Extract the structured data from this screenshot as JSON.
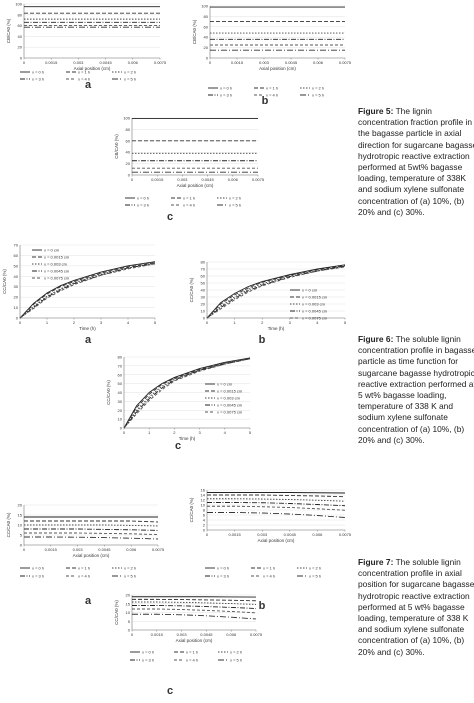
{
  "figures": [
    {
      "caption_label": "Figure 5:",
      "caption_text": "The lignin concentration fraction profile in the bagasse particle in axial direction for sugarcane bagasse hydrotropic reactive extraction performed at 5wt% bagasse loading, temperature of 338K and sodium xylene sulfonate concentration of (a) 10%, (b) 20% and (c) 30%.",
      "panels": [
        {
          "label": "a",
          "xlabel": "Axial position (cm)",
          "ylabel": "CB/CA0 (%)",
          "x": [
            0,
            0.0075
          ],
          "xlim": [
            0,
            0.0075
          ],
          "xticks": [
            0,
            0.0015,
            0.003,
            0.0045,
            0.006,
            0.0075
          ],
          "ylim": [
            0,
            100
          ],
          "yticks": [
            0,
            20,
            40,
            60,
            80,
            100
          ],
          "series": [
            {
              "name": "x = 0 h",
              "values": [
                95,
                95
              ]
            },
            {
              "name": "x = 1 h",
              "values": [
                83,
                83
              ]
            },
            {
              "name": "x = 2 h",
              "values": [
                72,
                72
              ]
            },
            {
              "name": "x = 3 h",
              "values": [
                66,
                66
              ]
            },
            {
              "name": "x = 4 h",
              "values": [
                60,
                60
              ]
            },
            {
              "name": "x = 5 h",
              "values": [
                57,
                57
              ]
            }
          ]
        },
        {
          "label": "b",
          "xlabel": "Axial position (cm)",
          "ylabel": "CB/CA0 (%)",
          "x": [
            0,
            0.0075
          ],
          "xlim": [
            0,
            0.0075
          ],
          "xticks": [
            0,
            0.0015,
            0.003,
            0.0045,
            0.006,
            0.0075
          ],
          "ylim": [
            0,
            100
          ],
          "yticks": [
            0,
            20,
            40,
            60,
            80,
            100
          ],
          "series": [
            {
              "name": "x = 0 h",
              "values": [
                98,
                98
              ]
            },
            {
              "name": "x = 1 h",
              "values": [
                70,
                70
              ]
            },
            {
              "name": "x = 2 h",
              "values": [
                48,
                48
              ]
            },
            {
              "name": "x = 3 h",
              "values": [
                36,
                36
              ]
            },
            {
              "name": "x = 4 h",
              "values": [
                25,
                25
              ]
            },
            {
              "name": "x = 5 h",
              "values": [
                15,
                15
              ]
            }
          ]
        },
        {
          "label": "c",
          "xlabel": "Axial position (cm)",
          "ylabel": "CB/CA0 (%)",
          "x": [
            0,
            0.0075
          ],
          "xlim": [
            0,
            0.0075
          ],
          "xticks": [
            0,
            0.0015,
            0.003,
            0.0045,
            0.006,
            0.0075
          ],
          "ylim": [
            0,
            100
          ],
          "yticks": [
            0,
            20,
            40,
            60,
            80,
            100
          ],
          "series": [
            {
              "name": "x = 0 h",
              "values": [
                99,
                99
              ]
            },
            {
              "name": "x = 1 h",
              "values": [
                60,
                60
              ]
            },
            {
              "name": "x = 2 h",
              "values": [
                38,
                38
              ]
            },
            {
              "name": "x = 3 h",
              "values": [
                25,
                25
              ]
            },
            {
              "name": "x = 4 h",
              "values": [
                12,
                12
              ]
            },
            {
              "name": "x = 5 h",
              "values": [
                5,
                5
              ]
            }
          ]
        }
      ]
    },
    {
      "caption_label": "Figure 6:",
      "caption_text": "The soluble lignin concentration profile in bagasse particle as time function for sugarcane bagasse hydrotropic reactive extraction performed at 5 wt% bagasse loading, temperature of 338 K and sodium xylene sulfonate concentration of (a) 10%, (b) 20% and (c) 30%.",
      "panels": [
        {
          "label": "a",
          "xlabel": "Time (h)",
          "ylabel": "CC/CA0 (%)",
          "x": [
            0,
            0.5,
            1,
            1.5,
            2,
            3,
            4,
            5
          ],
          "xlim": [
            0,
            5
          ],
          "xticks": [
            0,
            1,
            2,
            3,
            4,
            5
          ],
          "ylim": [
            0,
            70
          ],
          "yticks": [
            0,
            10,
            20,
            30,
            40,
            50,
            60,
            70
          ],
          "series": [
            {
              "name": "x = 0 cm",
              "values": [
                0,
                14,
                24,
                31,
                36,
                44,
                50,
                54
              ]
            },
            {
              "name": "x = 0.0015 cm",
              "values": [
                0,
                13,
                23,
                30,
                35,
                43,
                49,
                53
              ]
            },
            {
              "name": "x = 0.003 cm",
              "values": [
                0,
                11,
                21,
                28,
                34,
                42,
                48,
                53
              ]
            },
            {
              "name": "x = 0.0045 cm",
              "values": [
                0,
                10,
                20,
                27,
                33,
                41,
                48,
                52
              ]
            },
            {
              "name": "x = 0.0075 cm",
              "values": [
                0,
                9,
                19,
                26,
                32,
                41,
                47,
                52
              ]
            }
          ]
        },
        {
          "label": "b",
          "xlabel": "Time (h)",
          "ylabel": "CC/CA0 (%)",
          "x": [
            0,
            0.5,
            1,
            1.5,
            2,
            3,
            4,
            5
          ],
          "xlim": [
            0,
            5
          ],
          "xticks": [
            0,
            1,
            2,
            3,
            4,
            5
          ],
          "ylim": [
            0,
            80
          ],
          "yticks": [
            0,
            10,
            20,
            30,
            40,
            50,
            60,
            70,
            80
          ],
          "series": [
            {
              "name": "x = 0 cm",
              "values": [
                0,
                22,
                35,
                45,
                52,
                62,
                70,
                76
              ]
            },
            {
              "name": "x = 0.0015 cm",
              "values": [
                0,
                20,
                33,
                43,
                51,
                61,
                69,
                75
              ]
            },
            {
              "name": "x = 0.003 cm",
              "values": [
                0,
                17,
                30,
                41,
                49,
                60,
                68,
                74
              ]
            },
            {
              "name": "x = 0.0045 cm",
              "values": [
                0,
                15,
                28,
                39,
                47,
                59,
                67,
                74
              ]
            },
            {
              "name": "x = 0.0075 cm",
              "values": [
                0,
                13,
                26,
                37,
                46,
                58,
                67,
                73
              ]
            }
          ]
        },
        {
          "label": "c",
          "xlabel": "Time (h)",
          "ylabel": "CC/CA0 (%)",
          "x": [
            0,
            0.5,
            1,
            1.5,
            2,
            3,
            4,
            5
          ],
          "xlim": [
            0,
            5
          ],
          "xticks": [
            0,
            1,
            2,
            3,
            4,
            5
          ],
          "ylim": [
            0,
            80
          ],
          "yticks": [
            0,
            10,
            20,
            30,
            40,
            50,
            60,
            70,
            80
          ],
          "series": [
            {
              "name": "x = 0 cm",
              "values": [
                0,
                25,
                40,
                50,
                57,
                67,
                74,
                79
              ]
            },
            {
              "name": "x = 0.0015 cm",
              "values": [
                0,
                23,
                38,
                49,
                56,
                66,
                73,
                79
              ]
            },
            {
              "name": "x = 0.003 cm",
              "values": [
                0,
                20,
                35,
                47,
                55,
                65,
                73,
                78
              ]
            },
            {
              "name": "x = 0.0045 cm",
              "values": [
                0,
                18,
                33,
                45,
                54,
                65,
                72,
                78
              ]
            },
            {
              "name": "x = 0.0075 cm",
              "values": [
                0,
                16,
                31,
                43,
                53,
                64,
                72,
                78
              ]
            }
          ]
        }
      ]
    },
    {
      "caption_label": "Figure 7:",
      "caption_text": "The soluble lignin concentration profile in axial position for sugarcane bagasse hydrotropic reactive extraction performed at 5 wt% bagasse loading, temperature of 338 K and sodium xylene sulfonate concentration of (a) 10%, (b) 20% and (c) 30%.",
      "panels": [
        {
          "label": "a",
          "xlabel": "Axial position (cm)",
          "ylabel": "CC/CA0 (%)",
          "x": [
            0,
            0.0015,
            0.003,
            0.0045,
            0.006,
            0.0075
          ],
          "xlim": [
            0,
            0.0075
          ],
          "xticks": [
            0,
            0.0015,
            0.003,
            0.0045,
            0.006,
            0.0075
          ],
          "ylim": [
            0,
            20
          ],
          "yticks": [
            0,
            5,
            10,
            15,
            20
          ],
          "series": [
            {
              "name": "x = 0 h",
              "values": [
                14,
                14,
                14,
                14,
                14,
                14
              ]
            },
            {
              "name": "x = 1 h",
              "values": [
                12,
                12,
                12,
                12,
                12,
                11.5
              ]
            },
            {
              "name": "x = 2 h",
              "values": [
                10,
                10,
                10,
                10,
                9.8,
                9.5
              ]
            },
            {
              "name": "x = 3 h",
              "values": [
                8,
                8,
                8,
                7.8,
                7.6,
                7.3
              ]
            },
            {
              "name": "x = 4 h",
              "values": [
                6,
                6,
                6,
                5.8,
                5.6,
                5.2
              ]
            },
            {
              "name": "x = 5 h",
              "values": [
                4,
                4,
                3.9,
                3.7,
                3.4,
                3
              ]
            }
          ]
        },
        {
          "label": "b",
          "xlabel": "Axial position (cm)",
          "ylabel": "CC/CA0 (%)",
          "x": [
            0,
            0.0015,
            0.003,
            0.0045,
            0.006,
            0.0075
          ],
          "xlim": [
            0,
            0.0075
          ],
          "xticks": [
            0,
            0.0015,
            0.003,
            0.0045,
            0.006,
            0.0075
          ],
          "ylim": [
            0,
            16
          ],
          "yticks": [
            0,
            2,
            4,
            6,
            8,
            10,
            12,
            14,
            16
          ],
          "series": [
            {
              "name": "x = 0 h",
              "values": [
                15,
                15,
                15,
                15,
                14.9,
                14.8
              ]
            },
            {
              "name": "x = 1 h",
              "values": [
                14,
                14,
                14,
                13.8,
                13.6,
                13.3
              ]
            },
            {
              "name": "x = 2 h",
              "values": [
                12.5,
                12.5,
                12.4,
                12.2,
                11.9,
                11.5
              ]
            },
            {
              "name": "x = 3 h",
              "values": [
                11,
                11,
                10.9,
                10.6,
                10.2,
                9.7
              ]
            },
            {
              "name": "x = 4 h",
              "values": [
                9.5,
                9.5,
                9.3,
                9,
                8.5,
                7.9
              ]
            },
            {
              "name": "x = 5 h",
              "values": [
                7,
                7,
                6.8,
                6.4,
                5.8,
                5
              ]
            }
          ]
        },
        {
          "label": "c",
          "xlabel": "Axial position (cm)",
          "ylabel": "CC/CA0 (%)",
          "x": [
            0,
            0.0015,
            0.003,
            0.0045,
            0.006,
            0.0075
          ],
          "xlim": [
            0,
            0.0075
          ],
          "xticks": [
            0,
            0.0015,
            0.003,
            0.0045,
            0.006,
            0.0075
          ],
          "ylim": [
            0,
            20
          ],
          "yticks": [
            0,
            5,
            10,
            15,
            20
          ],
          "series": [
            {
              "name": "x = 0 h",
              "values": [
                19,
                19,
                19,
                19,
                18.9,
                18.8
              ]
            },
            {
              "name": "x = 1 h",
              "values": [
                17.5,
                17.5,
                17.4,
                17.2,
                17,
                16.7
              ]
            },
            {
              "name": "x = 2 h",
              "values": [
                16,
                16,
                15.8,
                15.5,
                15.1,
                14.6
              ]
            },
            {
              "name": "x = 3 h",
              "values": [
                14,
                14,
                13.8,
                13.4,
                12.9,
                12.3
              ]
            },
            {
              "name": "x = 4 h",
              "values": [
                12,
                12,
                11.7,
                11.2,
                10.6,
                9.8
              ]
            },
            {
              "name": "x = 5 h",
              "values": [
                9,
                9,
                8.7,
                8.1,
                7.3,
                6.3
              ]
            }
          ]
        }
      ]
    }
  ]
}
